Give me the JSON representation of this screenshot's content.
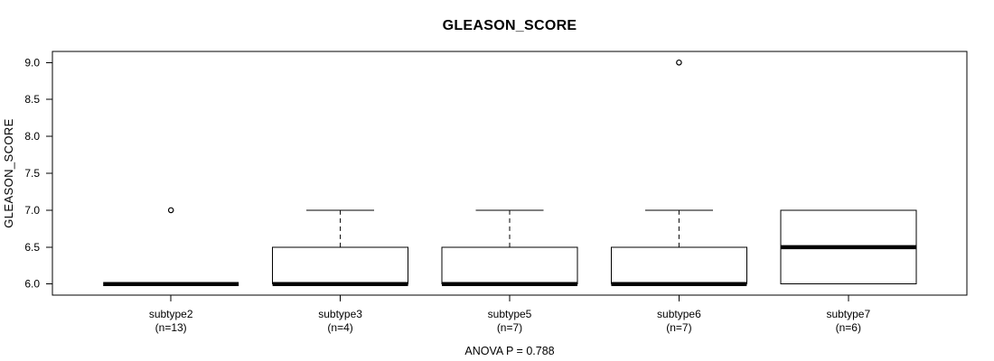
{
  "chart_data": {
    "type": "boxplot",
    "title": "GLEASON_SCORE",
    "ylabel": "GLEASON_SCORE",
    "xlabel": "",
    "annotation": "ANOVA P = 0.788",
    "grid": false,
    "legend": null,
    "ylim": [
      5.85,
      9.15
    ],
    "yticks": [
      6.0,
      6.5,
      7.0,
      7.5,
      8.0,
      8.5,
      9.0
    ],
    "ytick_labels": [
      "6.0",
      "6.5",
      "7.0",
      "7.5",
      "8.0",
      "8.5",
      "9.0"
    ],
    "groups": [
      {
        "label": "subtype2",
        "n_label": "(n=13)",
        "n": 13,
        "min": 6.0,
        "q1": 6.0,
        "median": 6.0,
        "q3": 6.0,
        "max": 6.0,
        "outliers": [
          7.0
        ]
      },
      {
        "label": "subtype3",
        "n_label": "(n=4)",
        "n": 4,
        "min": 6.0,
        "q1": 6.0,
        "median": 6.0,
        "q3": 6.5,
        "max": 7.0,
        "outliers": []
      },
      {
        "label": "subtype5",
        "n_label": "(n=7)",
        "n": 7,
        "min": 6.0,
        "q1": 6.0,
        "median": 6.0,
        "q3": 6.5,
        "max": 7.0,
        "outliers": []
      },
      {
        "label": "subtype6",
        "n_label": "(n=7)",
        "n": 7,
        "min": 6.0,
        "q1": 6.0,
        "median": 6.0,
        "q3": 6.5,
        "max": 7.0,
        "outliers": [
          9.0
        ]
      },
      {
        "label": "subtype7",
        "n_label": "(n=6)",
        "n": 6,
        "min": 6.0,
        "q1": 6.0,
        "median": 6.5,
        "q3": 7.0,
        "max": 7.0,
        "outliers": []
      }
    ],
    "colors": {
      "line": "#000000",
      "box_fill": "#ffffff",
      "background": "#ffffff"
    }
  }
}
